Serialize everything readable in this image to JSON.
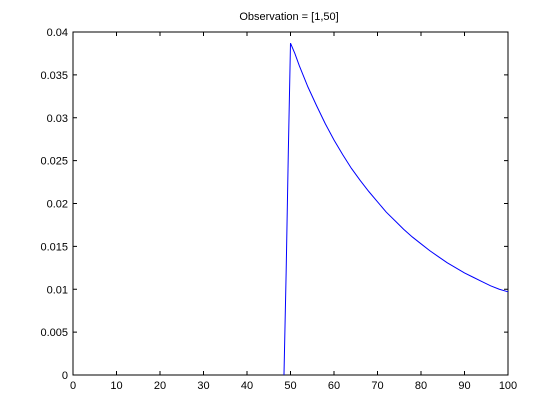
{
  "chart_data": {
    "type": "line",
    "title": "Observation = [1,50]",
    "xlabel": "",
    "ylabel": "",
    "xlim": [
      0,
      100
    ],
    "ylim": [
      0,
      0.04
    ],
    "xticks": [
      "0",
      "10",
      "20",
      "30",
      "40",
      "50",
      "60",
      "70",
      "80",
      "90",
      "100"
    ],
    "yticks": [
      "0",
      "0.005",
      "0.01",
      "0.015",
      "0.02",
      "0.025",
      "0.03",
      "0.035",
      "0.04"
    ],
    "grid": false,
    "series": [
      {
        "color": "#0000ff",
        "x": [
          48.5,
          49,
          49.5,
          50,
          51,
          52,
          54,
          56,
          58,
          60,
          62,
          64,
          66,
          68,
          70,
          72,
          74,
          76,
          78,
          80,
          82,
          84,
          86,
          88,
          90,
          92,
          94,
          96,
          98,
          100
        ],
        "y": [
          0,
          0.012,
          0.026,
          0.0387,
          0.0375,
          0.0361,
          0.0336,
          0.0314,
          0.0293,
          0.0274,
          0.0257,
          0.0241,
          0.0227,
          0.0214,
          0.0202,
          0.019,
          0.018,
          0.017,
          0.0161,
          0.0153,
          0.0145,
          0.0138,
          0.0131,
          0.0125,
          0.0119,
          0.0114,
          0.0109,
          0.0104,
          0.01,
          0.0097
        ]
      }
    ]
  }
}
